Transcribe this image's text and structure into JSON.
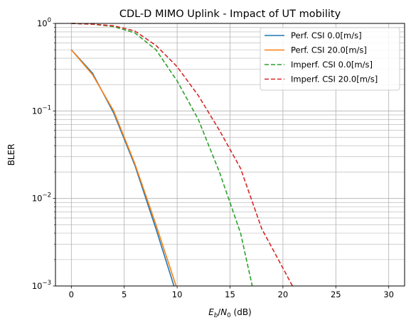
{
  "chart_data": {
    "type": "line",
    "title": "CDL-D MIMO Uplink - Impact of UT mobility",
    "xlabel": "E_b/N_0 (dB)",
    "ylabel": "BLER",
    "xlim": [
      -1.5,
      31.5
    ],
    "ylim": [
      0.001,
      1
    ],
    "yscale": "log",
    "grid": true,
    "legend_position": "top-right",
    "x_ticks": [
      0,
      5,
      10,
      15,
      20,
      25,
      30
    ],
    "y_ticks": [
      {
        "value": 0.001,
        "base": "10",
        "exp": "−3"
      },
      {
        "value": 0.01,
        "base": "10",
        "exp": "−2"
      },
      {
        "value": 0.1,
        "base": "10",
        "exp": "−1"
      },
      {
        "value": 1,
        "base": "10",
        "exp": "0"
      }
    ],
    "series": [
      {
        "name": "Perf. CSI 0.0[m/s]",
        "color": "#1f77b4",
        "dash": "solid",
        "x": [
          0,
          2,
          4,
          6,
          8,
          9.7
        ],
        "y": [
          0.5,
          0.27,
          0.095,
          0.024,
          0.0045,
          0.001
        ]
      },
      {
        "name": "Perf. CSI 20.0[m/s]",
        "color": "#ff7f0e",
        "dash": "solid",
        "x": [
          0,
          2,
          4,
          6,
          8,
          9.9
        ],
        "y": [
          0.5,
          0.26,
          0.1,
          0.025,
          0.005,
          0.001
        ]
      },
      {
        "name": "Imperf. CSI 0.0[m/s]",
        "color": "#2ca02c",
        "dash": "dashed",
        "x": [
          0,
          2,
          4,
          6,
          8,
          10,
          12,
          14,
          16,
          17.1
        ],
        "y": [
          1.0,
          0.98,
          0.92,
          0.78,
          0.5,
          0.22,
          0.08,
          0.02,
          0.004,
          0.001
        ]
      },
      {
        "name": "Imperf. CSI 20.0[m/s]",
        "color": "#d62728",
        "dash": "dashed",
        "x": [
          0,
          2,
          4,
          6,
          8,
          10,
          12,
          14,
          16,
          18,
          20,
          20.9
        ],
        "y": [
          1.0,
          0.98,
          0.94,
          0.82,
          0.56,
          0.32,
          0.15,
          0.06,
          0.022,
          0.0045,
          0.0016,
          0.001
        ]
      }
    ]
  }
}
